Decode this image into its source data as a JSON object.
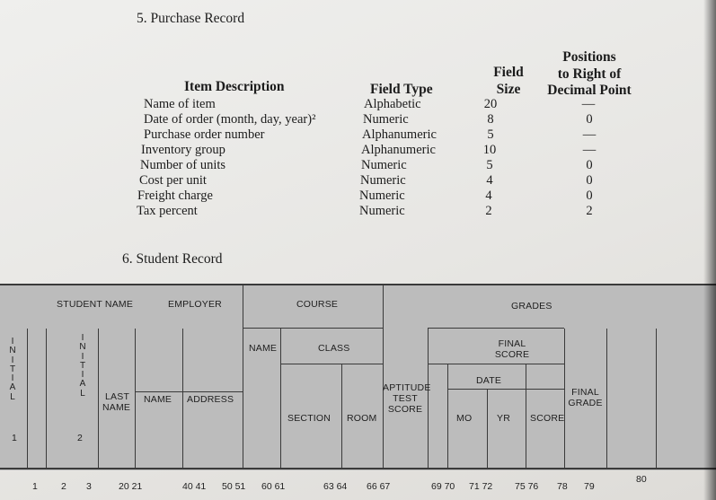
{
  "section5": {
    "heading": "5.  Purchase Record",
    "col_item": "Item Description",
    "col_type": "Field Type",
    "col_size": [
      "Field",
      "Size"
    ],
    "col_pos": [
      "Positions",
      "to Right of",
      "Decimal Point"
    ],
    "rows": [
      {
        "item": "Name of item",
        "type": "Alphabetic",
        "size": "20",
        "pos": "—"
      },
      {
        "item": "Date of order (month, day, year)²",
        "type": "Numeric",
        "size": "8",
        "pos": "0"
      },
      {
        "item": "Purchase order number",
        "type": "Alphanumeric",
        "size": "5",
        "pos": "—"
      },
      {
        "item": "Inventory group",
        "type": "Alphanumeric",
        "size": "10",
        "pos": "—"
      },
      {
        "item": "Number of units",
        "type": "Numeric",
        "size": "5",
        "pos": "0"
      },
      {
        "item": "Cost per unit",
        "type": "Numeric",
        "size": "4",
        "pos": "0"
      },
      {
        "item": "Freight charge",
        "type": "Numeric",
        "size": "4",
        "pos": "0"
      },
      {
        "item": "Tax percent",
        "type": "Numeric",
        "size": "2",
        "pos": "2"
      }
    ]
  },
  "section6": {
    "heading": "6.  Student Record",
    "student_name": "STUDENT NAME",
    "employer": "EMPLOYER",
    "course": "COURSE",
    "grades": "GRADES",
    "name": "NAME",
    "class": "CLASS",
    "final_score": [
      "FINAL",
      "SCORE"
    ],
    "initial": "INITIAL",
    "initial_nums": [
      "1",
      "2"
    ],
    "last_name": [
      "LAST",
      "NAME"
    ],
    "name2": "NAME",
    "address": "ADDRESS",
    "section": "SECTION",
    "room": "ROOM",
    "aptitude": [
      "APTITUDE",
      "TEST",
      "SCORE"
    ],
    "date": "DATE",
    "mo": "MO",
    "yr": "YR",
    "score": "SCORE",
    "final_grade": [
      "FINAL",
      "GRADE"
    ],
    "positions": [
      "1",
      "2",
      "3",
      "20 21",
      "40 41",
      "50 51",
      "60 61",
      "63 64",
      "66 67",
      "69 70",
      "71 72",
      "75 76",
      "78",
      "79",
      "80"
    ]
  }
}
